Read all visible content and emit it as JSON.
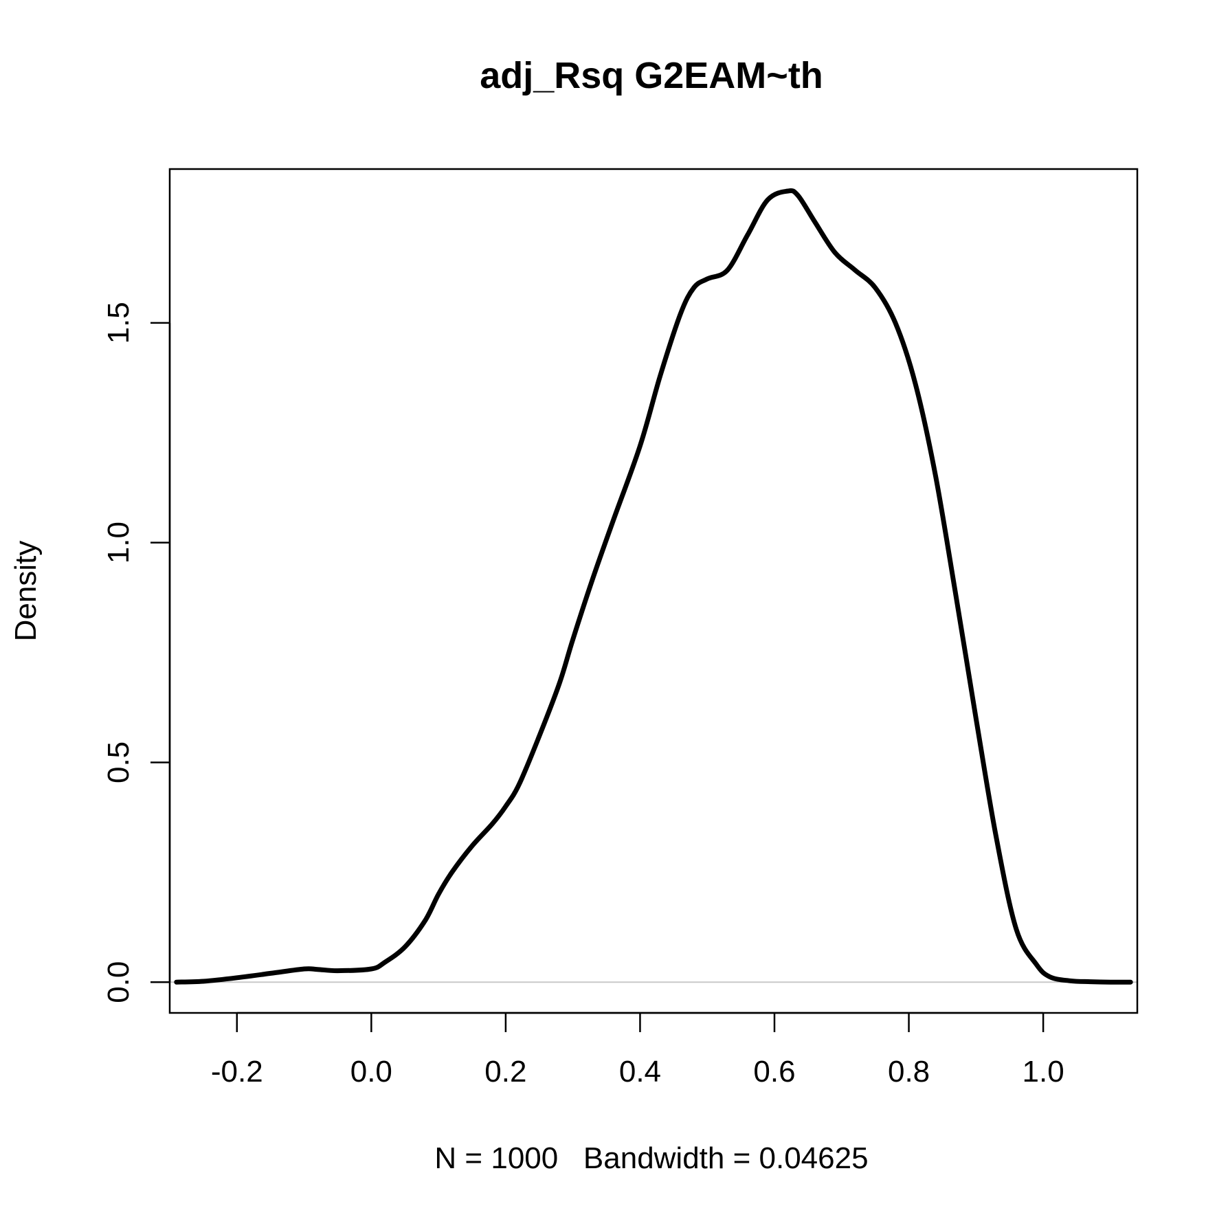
{
  "chart_data": {
    "type": "line",
    "title": "adj_Rsq G2EAM~th",
    "xlabel": "N = 1000   Bandwidth = 0.04625",
    "ylabel": "Density",
    "xlim": [
      -0.3,
      1.14
    ],
    "ylim": [
      -0.07,
      1.85
    ],
    "x_ticks": [
      -0.2,
      0.0,
      0.2,
      0.4,
      0.6,
      0.8,
      1.0
    ],
    "x_tick_labels": [
      "-0.2",
      "0.0",
      "0.2",
      "0.4",
      "0.6",
      "0.8",
      "1.0"
    ],
    "y_ticks": [
      0.0,
      0.5,
      1.0,
      1.5
    ],
    "y_tick_labels": [
      "0.0",
      "0.5",
      "1.0",
      "1.5"
    ],
    "grid": false,
    "reference_line_y": 0,
    "colors": {
      "line": "#000000",
      "reference_line": "#c8c8c8",
      "frame": "#000000"
    },
    "series": [
      {
        "x": [
          -0.29,
          -0.25,
          -0.2,
          -0.15,
          -0.1,
          -0.08,
          -0.05,
          0.0,
          0.02,
          0.05,
          0.08,
          0.1,
          0.12,
          0.15,
          0.18,
          0.2,
          0.22,
          0.25,
          0.28,
          0.3,
          0.33,
          0.36,
          0.4,
          0.43,
          0.46,
          0.48,
          0.5,
          0.53,
          0.56,
          0.59,
          0.62,
          0.635,
          0.66,
          0.69,
          0.72,
          0.75,
          0.78,
          0.81,
          0.84,
          0.87,
          0.9,
          0.93,
          0.96,
          0.99,
          1.01,
          1.04,
          1.07,
          1.1,
          1.13
        ],
        "y": [
          0.0,
          0.002,
          0.01,
          0.02,
          0.03,
          0.029,
          0.026,
          0.03,
          0.045,
          0.08,
          0.14,
          0.2,
          0.25,
          0.31,
          0.36,
          0.4,
          0.45,
          0.56,
          0.68,
          0.78,
          0.92,
          1.05,
          1.22,
          1.38,
          1.52,
          1.58,
          1.6,
          1.62,
          1.7,
          1.78,
          1.8,
          1.79,
          1.73,
          1.66,
          1.62,
          1.58,
          1.5,
          1.36,
          1.15,
          0.88,
          0.6,
          0.33,
          0.12,
          0.04,
          0.012,
          0.003,
          0.001,
          0.0,
          0.0
        ]
      }
    ]
  }
}
